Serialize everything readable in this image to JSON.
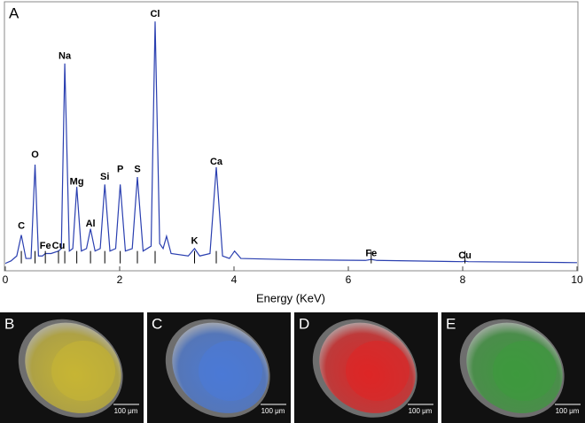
{
  "chart_data": {
    "type": "line",
    "panel_label": "A",
    "x_label": "Energy (KeV)",
    "xlim": [
      0,
      10
    ],
    "xticks": [
      0,
      2,
      4,
      6,
      8,
      10
    ],
    "ylim": [
      -3,
      106
    ],
    "series": [
      {
        "color": "#2a3fb0",
        "x": [
          0,
          0.1,
          0.2,
          0.28,
          0.36,
          0.45,
          0.52,
          0.58,
          0.65,
          0.7,
          0.8,
          0.93,
          0.98,
          1.04,
          1.12,
          1.18,
          1.25,
          1.33,
          1.42,
          1.49,
          1.57,
          1.66,
          1.74,
          1.83,
          1.93,
          2.01,
          2.1,
          2.22,
          2.31,
          2.41,
          2.55,
          2.62,
          2.7,
          2.76,
          2.82,
          2.9,
          3.2,
          3.31,
          3.4,
          3.58,
          3.69,
          3.8,
          3.92,
          4.01,
          4.12,
          5,
          6.3,
          6.4,
          6.5,
          8,
          8.04,
          8.1,
          10
        ],
        "values": [
          0,
          1,
          3,
          11.5,
          2,
          2,
          40,
          3,
          3,
          4,
          4,
          5,
          6,
          81,
          5,
          6,
          31,
          5,
          6,
          14,
          5,
          6,
          32,
          5,
          6,
          32,
          5,
          6,
          35,
          5,
          7,
          98,
          8,
          6,
          11,
          4,
          3,
          6,
          3,
          4,
          39,
          3,
          2,
          5,
          2,
          1.5,
          1.2,
          1.6,
          1.2,
          0.7,
          0.9,
          0.7,
          0.3
        ]
      }
    ],
    "annotations": [
      {
        "text": "C",
        "x": 0.28,
        "y": 15
      },
      {
        "text": "O",
        "x": 0.52,
        "y": 44
      },
      {
        "text": "Fe",
        "x": 0.7,
        "y": 7
      },
      {
        "text": "Cu",
        "x": 0.93,
        "y": 7
      },
      {
        "text": "Na",
        "x": 1.04,
        "y": 84
      },
      {
        "text": "Mg",
        "x": 1.25,
        "y": 33
      },
      {
        "text": "Al",
        "x": 1.49,
        "y": 16
      },
      {
        "text": "Si",
        "x": 1.74,
        "y": 35
      },
      {
        "text": "P",
        "x": 2.01,
        "y": 38
      },
      {
        "text": "S",
        "x": 2.31,
        "y": 38
      },
      {
        "text": "Cl",
        "x": 2.62,
        "y": 101
      },
      {
        "text": "K",
        "x": 3.31,
        "y": 9
      },
      {
        "text": "Ca",
        "x": 3.69,
        "y": 41
      },
      {
        "text": "Fe",
        "x": 6.4,
        "y": 4
      },
      {
        "text": "Cu",
        "x": 8.04,
        "y": 3
      }
    ]
  },
  "panels": [
    {
      "label": "B",
      "scale_bar": "100 μm",
      "color": "#c9b733"
    },
    {
      "label": "C",
      "scale_bar": "100 μm",
      "color": "#4a7ad8"
    },
    {
      "label": "D",
      "scale_bar": "100 μm",
      "color": "#e02424"
    },
    {
      "label": "E",
      "scale_bar": "100 μm",
      "color": "#3c9a3c"
    }
  ]
}
